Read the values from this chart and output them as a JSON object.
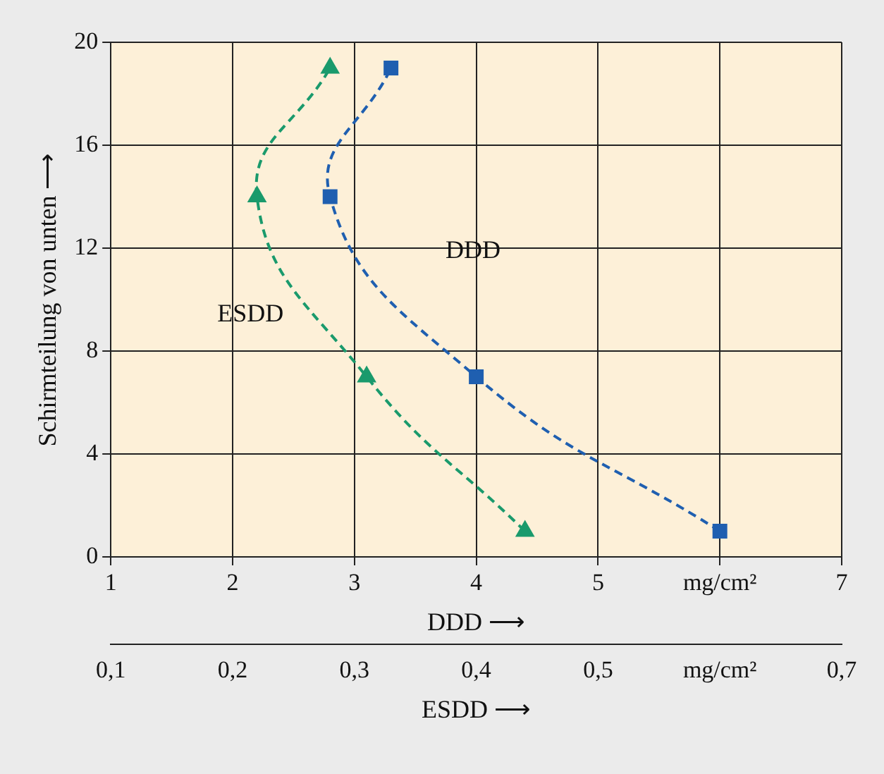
{
  "chart_data": {
    "type": "line",
    "xlabel": "DDD ⟶",
    "x2label": "ESDD ⟶",
    "ylabel": "Schirmteilung von unten ⟶",
    "xlim": [
      1,
      7
    ],
    "xticks": [
      1,
      2,
      3,
      4,
      5,
      {
        "value": 6,
        "label": "mg/cm²"
      },
      7
    ],
    "x2lim": [
      0.1,
      0.7
    ],
    "x2ticks": [
      {
        "value": 0.1,
        "label": "0,1"
      },
      {
        "value": 0.2,
        "label": "0,2"
      },
      {
        "value": 0.3,
        "label": "0,3"
      },
      {
        "value": 0.4,
        "label": "0,4"
      },
      {
        "value": 0.5,
        "label": "0,5"
      },
      {
        "value": 0.6,
        "label": "mg/cm²"
      },
      {
        "value": 0.7,
        "label": "0,7"
      }
    ],
    "ylim": [
      0,
      20
    ],
    "yticks": [
      0,
      4,
      8,
      12,
      16,
      20
    ],
    "grid": true,
    "legend": false,
    "line_style": "dashed",
    "series": [
      {
        "name": "DDD",
        "color": "#1f5fb0",
        "marker": "square",
        "x": [
          6.0,
          4.0,
          2.8,
          3.3
        ],
        "values": [
          1,
          7,
          14,
          19
        ]
      },
      {
        "name": "ESDD",
        "color": "#1a9a6c",
        "marker": "triangle",
        "axis": "x2",
        "x": [
          0.44,
          0.31,
          0.22,
          0.28
        ],
        "values": [
          1,
          7,
          14,
          19
        ]
      }
    ]
  }
}
